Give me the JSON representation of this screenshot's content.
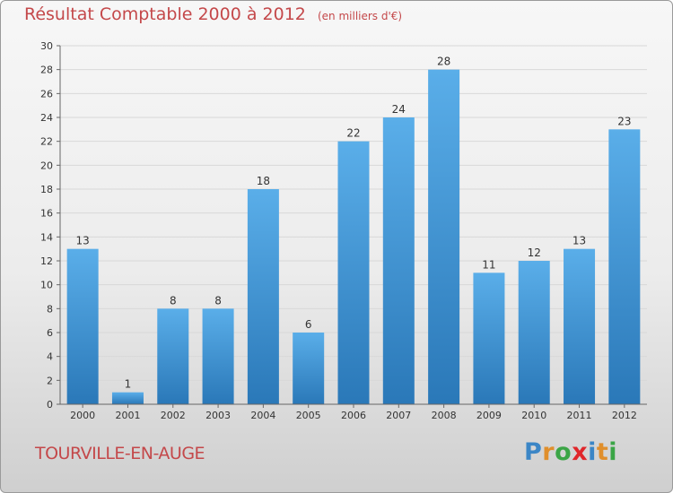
{
  "colors": {
    "title": "#c4484a",
    "bar_top": "#5aaee9",
    "bar_bottom": "#2a78b8",
    "axis": "#666666",
    "grid": "#d8d8d8",
    "text": "#333333"
  },
  "footer": {
    "commune": "TOURVILLE-EN-AUGE",
    "logo_letters": [
      {
        "ch": "P",
        "color": "#3b86c6"
      },
      {
        "ch": "r",
        "color": "#e08f2c"
      },
      {
        "ch": "o",
        "color": "#3ba546"
      },
      {
        "ch": "x",
        "color": "#e0262a"
      },
      {
        "ch": "i",
        "color": "#3b86c6"
      },
      {
        "ch": "t",
        "color": "#e08f2c"
      },
      {
        "ch": "i",
        "color": "#3ba546"
      }
    ]
  },
  "chart_data": {
    "type": "bar",
    "title": "Résultat Comptable 2000 à 2012",
    "unit": "(en milliers d'€)",
    "categories": [
      "2000",
      "2001",
      "2002",
      "2003",
      "2004",
      "2005",
      "2006",
      "2007",
      "2008",
      "2009",
      "2010",
      "2011",
      "2012"
    ],
    "values": [
      13,
      1,
      8,
      8,
      18,
      6,
      22,
      24,
      28,
      11,
      12,
      13,
      23
    ],
    "ylim": [
      0,
      30
    ],
    "yticks": [
      0,
      2,
      4,
      6,
      8,
      10,
      12,
      14,
      16,
      18,
      20,
      22,
      24,
      26,
      28,
      30
    ],
    "xlabel": "",
    "ylabel": "",
    "grid": true,
    "legend": "none"
  }
}
